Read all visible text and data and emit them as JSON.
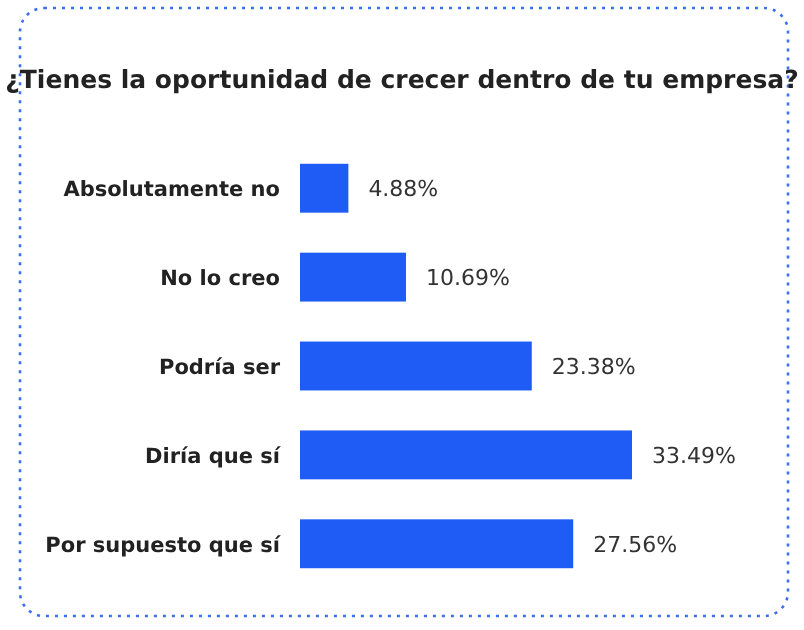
{
  "chart_data": {
    "type": "bar",
    "orientation": "horizontal",
    "title": "¿Tienes la oportunidad de crecer dentro de tu empresa?",
    "categories": [
      "Absolutamente no",
      "No lo creo",
      "Podría ser",
      "Diría que sí",
      "Por supuesto que sí"
    ],
    "values": [
      4.88,
      10.69,
      23.38,
      33.49,
      27.56
    ],
    "value_labels": [
      "4.88%",
      "10.69%",
      "23.38%",
      "33.49%",
      "27.56%"
    ],
    "color": "#1f5cf5",
    "tick_labels": "y"
  }
}
